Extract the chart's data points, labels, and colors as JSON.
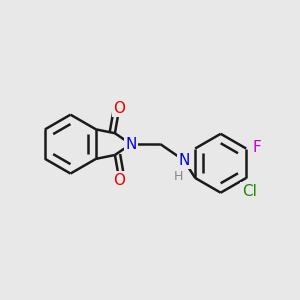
{
  "background_color": "#e8e8e8",
  "bond_color": "#1a1a1a",
  "bond_width": 1.8,
  "atom_colors": {
    "N": "#0000ee",
    "O": "#ee0000",
    "Cl": "#228800",
    "F": "#cc00cc",
    "C": "#1a1a1a",
    "H": "#888888"
  },
  "font_size": 10,
  "figsize": [
    3.0,
    3.0
  ],
  "dpi": 100
}
